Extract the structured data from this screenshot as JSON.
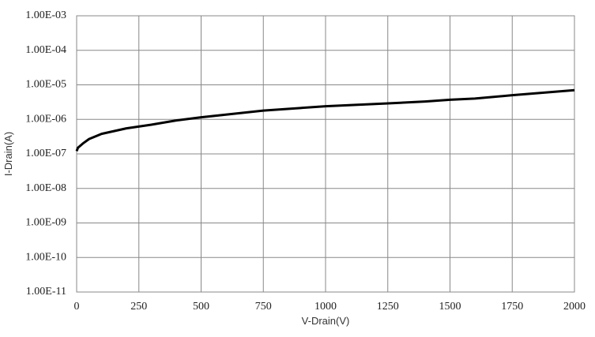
{
  "chart_data": {
    "type": "line",
    "x_label": "V-Drain(V)",
    "y_label": "I-Drain(A)",
    "log_y": true,
    "grid": true,
    "xlim": [
      0,
      2000
    ],
    "xticks": [
      0,
      250,
      500,
      750,
      1000,
      1250,
      1500,
      1750,
      2000
    ],
    "ylim": [
      1e-11,
      0.001
    ],
    "yticks": [
      {
        "value": 1e-11,
        "label": "1.00E-11"
      },
      {
        "value": 1e-10,
        "label": "1.00E-10"
      },
      {
        "value": 1e-09,
        "label": "1.00E-09"
      },
      {
        "value": 1e-08,
        "label": "1.00E-08"
      },
      {
        "value": 1e-07,
        "label": "1.00E-07"
      },
      {
        "value": 1e-06,
        "label": "1.00E-06"
      },
      {
        "value": 1e-05,
        "label": "1.00E-05"
      },
      {
        "value": 0.0001,
        "label": "1.00E-04"
      },
      {
        "value": 0.001,
        "label": "1.00E-03"
      }
    ],
    "series": [
      {
        "color": "#000000",
        "x": [
          0,
          5,
          25,
          50,
          100,
          200,
          300,
          400,
          500,
          750,
          1000,
          1250,
          1400,
          1500,
          1600,
          1750,
          2000
        ],
        "values": [
          1.2e-07,
          1.5e-07,
          2e-07,
          2.7e-07,
          3.8e-07,
          5.5e-07,
          7e-07,
          9.3e-07,
          1.15e-06,
          1.8e-06,
          2.4e-06,
          2.9e-06,
          3.3e-06,
          3.7e-06,
          4e-06,
          5e-06,
          7e-06
        ]
      }
    ]
  }
}
